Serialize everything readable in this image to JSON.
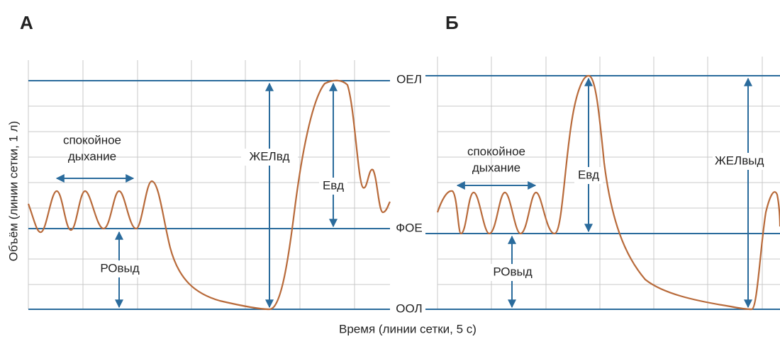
{
  "panel_a": {
    "label": "А",
    "quiet_breathing": [
      "спокойное",
      "дыхание"
    ],
    "vc_in": "ЖЕЛвд",
    "ic": "Евд",
    "erv": "РОвыд"
  },
  "panel_b": {
    "label": "Б",
    "quiet_breathing": [
      "спокойное",
      "дыхание"
    ],
    "ic": "Евд",
    "vc_out": "ЖЕЛвыд",
    "erv": "РОвыд",
    "levels": [
      "ОЕЛ",
      "ФОЕ",
      "ООЛ"
    ]
  },
  "y_axis_label": "Объём (линии сетки, 1 л)",
  "x_axis_label": "Время (линии сетки, 5 с)"
}
